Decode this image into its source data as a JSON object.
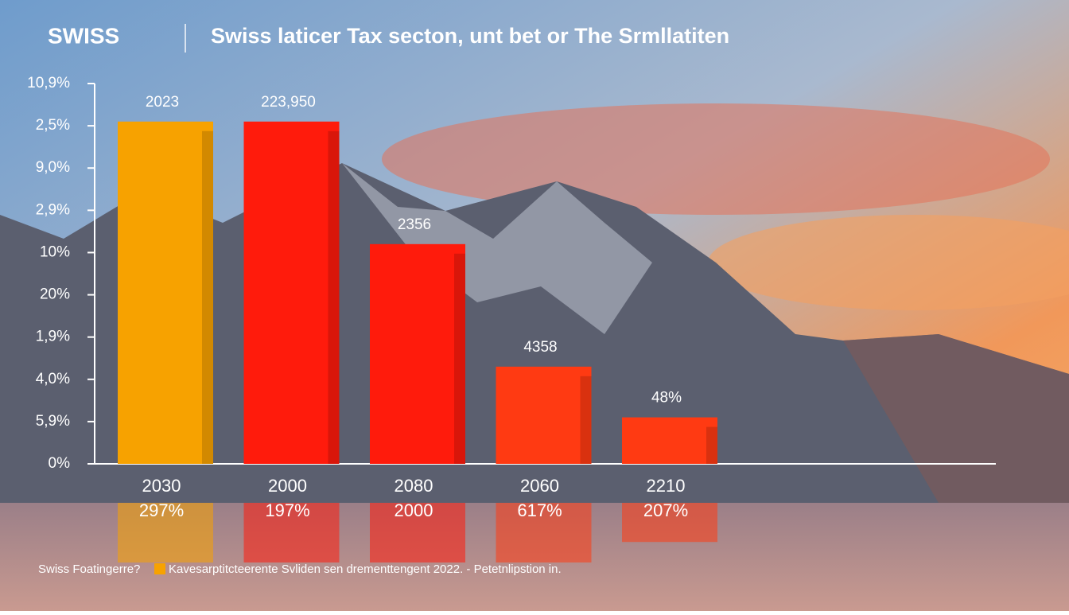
{
  "chart_data": {
    "type": "bar",
    "title": "SWISS",
    "subtitle": "Swiss laticer Tax secton, unt bet or The Srmllatiten",
    "categories": [
      "2030",
      "2000",
      "2080",
      "2060",
      "2210"
    ],
    "category_sublabels": [
      "297%",
      "197%",
      "2000",
      "617%",
      "207%"
    ],
    "values": [
      8.1,
      8.1,
      5.2,
      2.3,
      1.1
    ],
    "bar_annotations": [
      "2023",
      "223,950",
      "2356",
      "4358",
      "48%"
    ],
    "colors": [
      "#f7a200",
      "#ff1b0c",
      "#ff1b0c",
      "#ff3a12",
      "#ff3a12"
    ],
    "ylim": [
      0,
      9
    ],
    "yticks": [
      {
        "value": 0,
        "label": "0%"
      },
      {
        "value": 1,
        "label": "5,9%"
      },
      {
        "value": 2,
        "label": "4,0%"
      },
      {
        "value": 3,
        "label": "1,9%"
      },
      {
        "value": 4,
        "label": "20%"
      },
      {
        "value": 5,
        "label": "10%"
      },
      {
        "value": 6,
        "label": "2,9%"
      },
      {
        "value": 7,
        "label": "9,0%"
      },
      {
        "value": 8,
        "label": "2,5%"
      },
      {
        "value": 9,
        "label": "10,9%"
      }
    ],
    "footnote": "Swiss Foatingerre?",
    "legend": {
      "color": "#f7a200",
      "label": "Kavesarptitcteerente Svliden sen drementtengent 2022. - Petetnlipstion in."
    }
  }
}
